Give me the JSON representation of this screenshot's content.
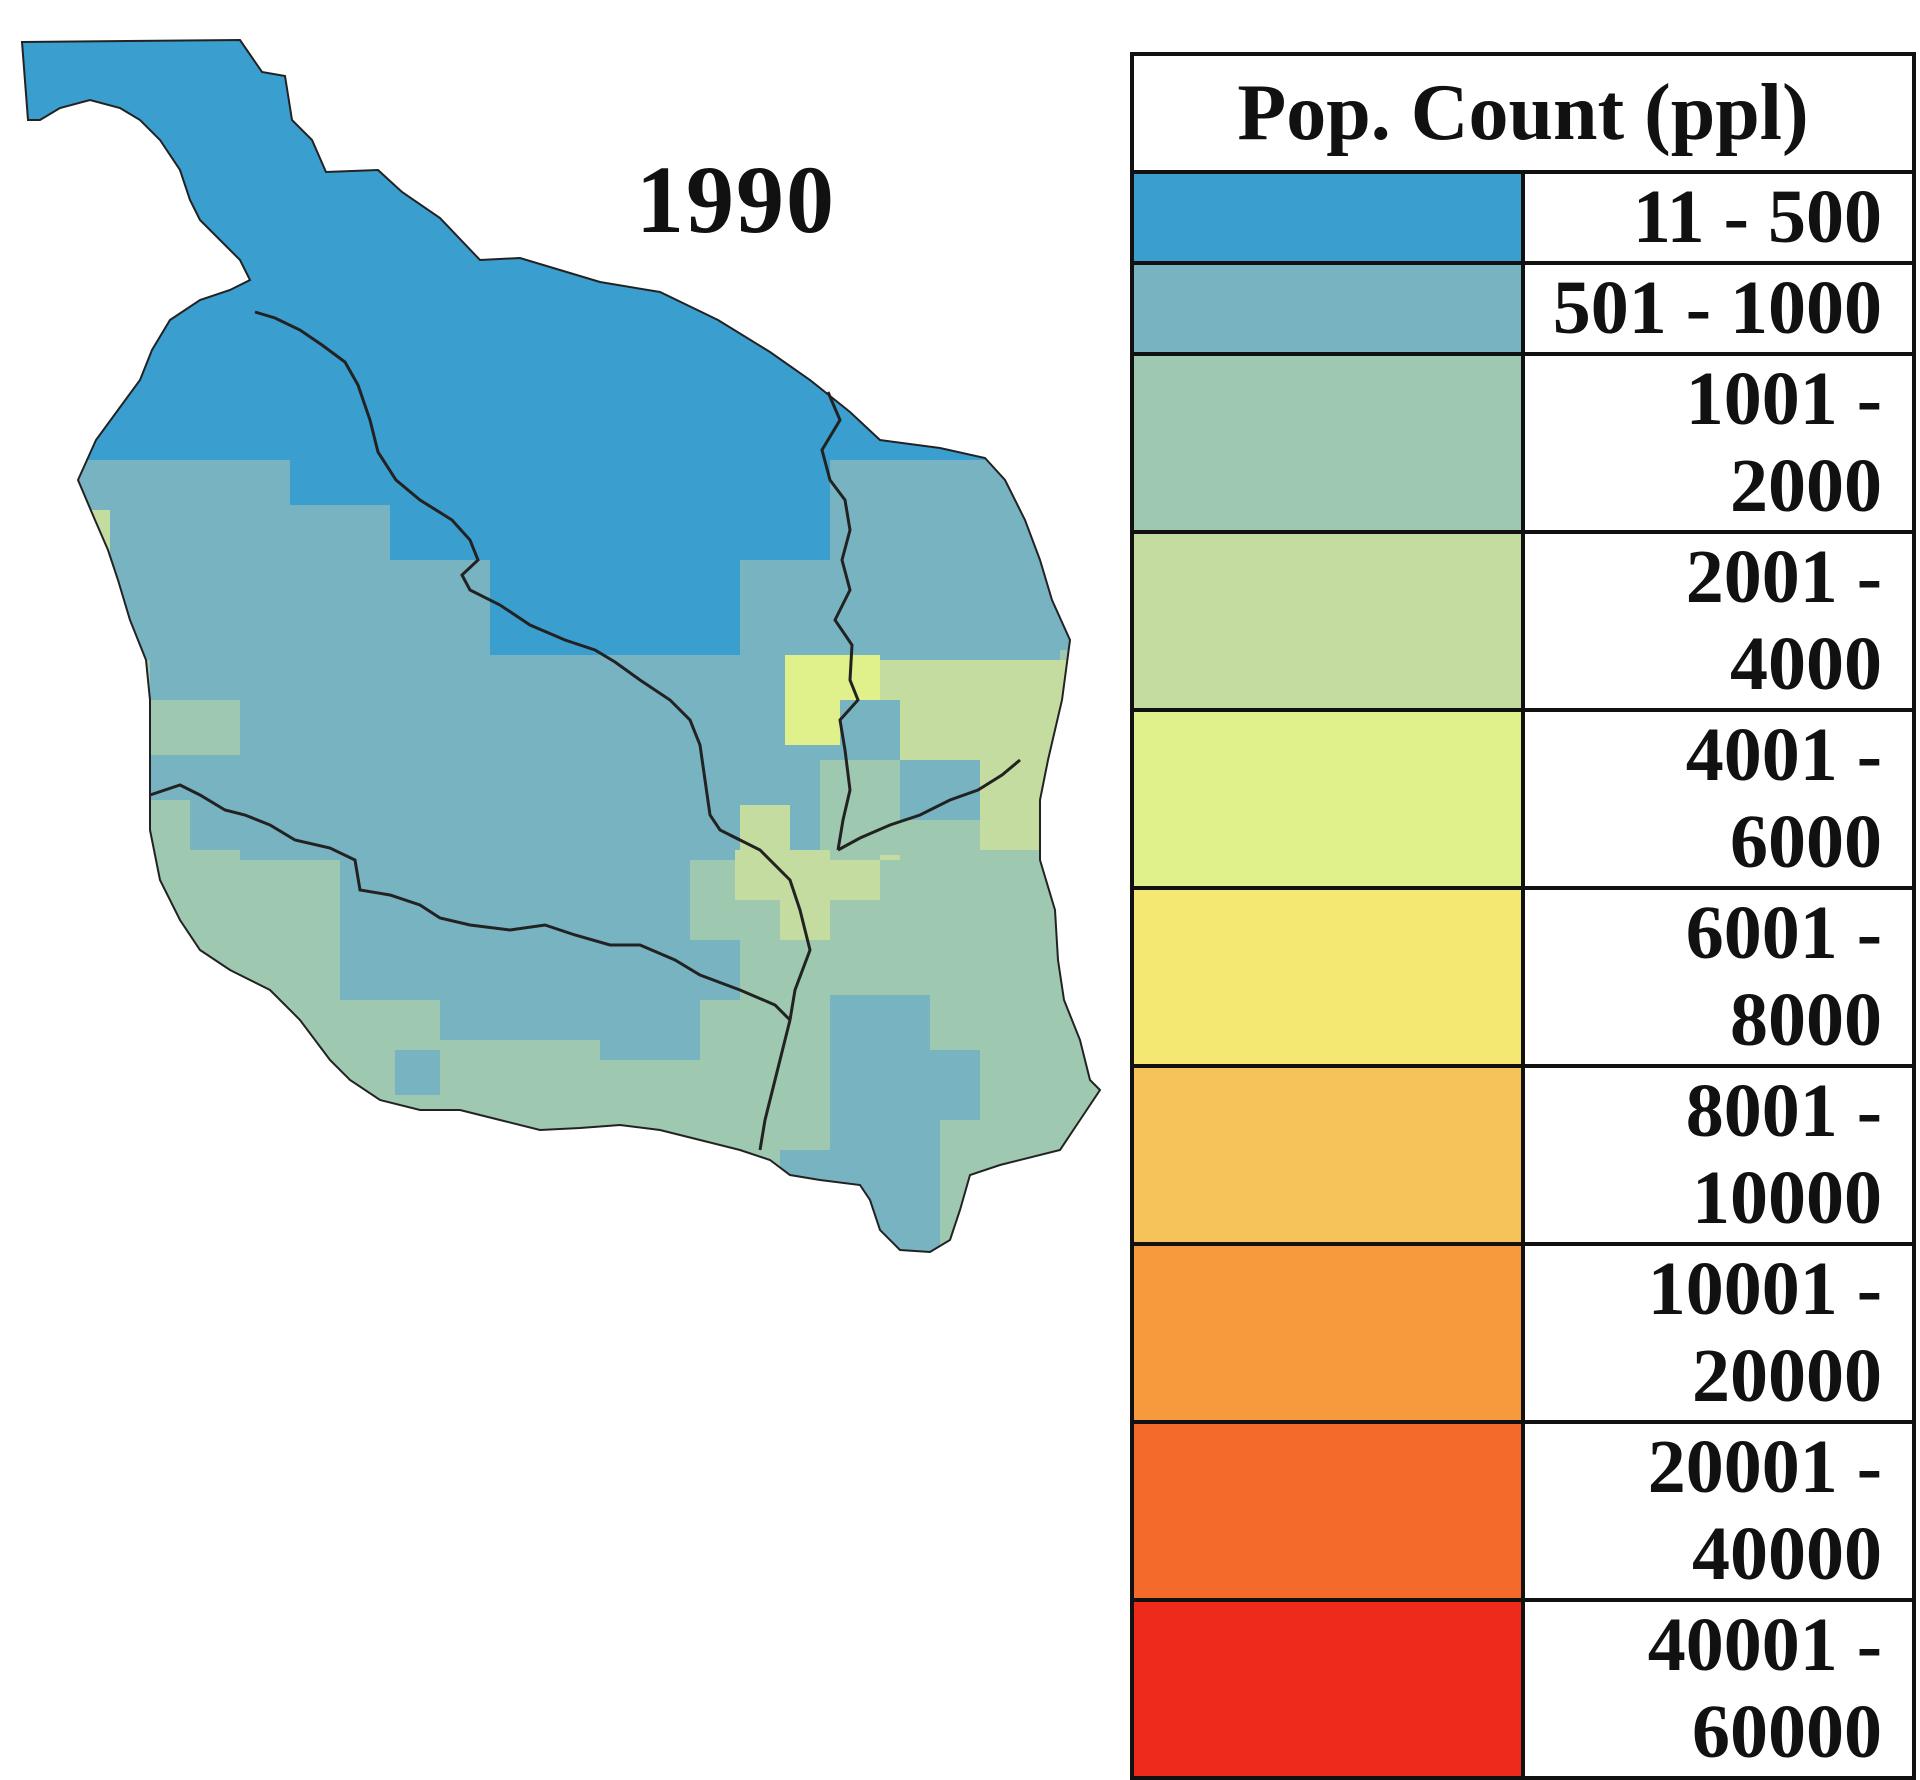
{
  "title": "1990",
  "legend": {
    "title": "Pop. Count (ppl)",
    "items": [
      {
        "label": "11 - 500",
        "color": "#3a9ecf"
      },
      {
        "label": "501 - 1000",
        "color": "#78b3c2"
      },
      {
        "label": "1001 - 2000",
        "color": "#9ec8b0"
      },
      {
        "label": "2001 - 4000",
        "color": "#c4dca0"
      },
      {
        "label": "4001 - 6000",
        "color": "#e0f08a"
      },
      {
        "label": "6001 - 8000",
        "color": "#f4e872"
      },
      {
        "label": "8001 - 10000",
        "color": "#f5c35a"
      },
      {
        "label": "10001 - 20000",
        "color": "#f79a3e"
      },
      {
        "label": "20001 - 40000",
        "color": "#f46a2a"
      },
      {
        "label": "40001 - 60000",
        "color": "#ee2a1a"
      }
    ]
  },
  "map": {
    "boundary_color": "#222222",
    "zones": [
      "11 - 500",
      "501 - 1000",
      "1001 - 2000",
      "2001 - 4000",
      "4001 - 6000"
    ]
  }
}
